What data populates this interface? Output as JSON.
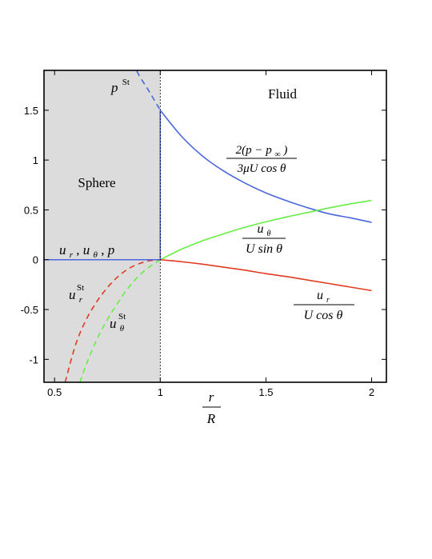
{
  "chart_data": {
    "type": "line",
    "xlabel": {
      "num": "r",
      "den": "R"
    },
    "xlim": [
      0.45,
      2.07
    ],
    "ylim": [
      -1.23,
      1.9
    ],
    "xticks": [
      {
        "value": 0.5,
        "label": "0.5"
      },
      {
        "value": 1,
        "label": "1"
      },
      {
        "value": 1.5,
        "label": "1.5"
      },
      {
        "value": 2,
        "label": "2"
      }
    ],
    "yticks": [
      {
        "value": -1,
        "label": "-1"
      },
      {
        "value": -0.5,
        "label": "-0.5"
      },
      {
        "value": 0,
        "label": "0"
      },
      {
        "value": 0.5,
        "label": "0.5"
      },
      {
        "value": 1,
        "label": "1"
      },
      {
        "value": 1.5,
        "label": "1.5"
      }
    ],
    "grid": false,
    "sphere_region": {
      "x_from": 0.45,
      "x_to": 1.0,
      "fill": "#dcdcdc"
    },
    "interface_x": 1.0,
    "series": [
      {
        "key": "pressure",
        "color": "#4a66dd",
        "style": "solid",
        "x": [
          1.0,
          1.1,
          1.2,
          1.3,
          1.4,
          1.5,
          1.6,
          1.7,
          1.8,
          1.9,
          2.0
        ],
        "y": [
          1.5,
          1.24,
          1.04,
          0.89,
          0.77,
          0.67,
          0.59,
          0.52,
          0.46,
          0.42,
          0.375
        ]
      },
      {
        "key": "pressure_stokes",
        "color": "#4a66dd",
        "style": "dashed",
        "x": [
          0.87,
          0.9,
          0.95,
          1.0
        ],
        "y": [
          1.98,
          1.85,
          1.68,
          1.5
        ]
      },
      {
        "key": "u_theta",
        "color": "#66ee44",
        "style": "solid",
        "x": [
          1.0,
          1.1,
          1.2,
          1.3,
          1.4,
          1.5,
          1.6,
          1.7,
          1.8,
          1.9,
          2.0
        ],
        "y": [
          0.0,
          0.105,
          0.19,
          0.26,
          0.325,
          0.38,
          0.43,
          0.475,
          0.52,
          0.56,
          0.595
        ]
      },
      {
        "key": "u_theta_stokes",
        "color": "#66ee44",
        "style": "dashed",
        "x": [
          0.62,
          0.65,
          0.7,
          0.75,
          0.8,
          0.85,
          0.9,
          0.95,
          1.0
        ],
        "y": [
          -1.23,
          -1.05,
          -0.8,
          -0.6,
          -0.43,
          -0.28,
          -0.16,
          -0.07,
          0.0
        ]
      },
      {
        "key": "u_r",
        "color": "#e03a22",
        "style": "solid",
        "x": [
          1.0,
          1.1,
          1.2,
          1.3,
          1.4,
          1.5,
          1.6,
          1.7,
          1.8,
          1.9,
          2.0
        ],
        "y": [
          0.0,
          -0.02,
          -0.045,
          -0.075,
          -0.105,
          -0.14,
          -0.17,
          -0.205,
          -0.24,
          -0.275,
          -0.31
        ]
      },
      {
        "key": "u_r_stokes",
        "color": "#e03a22",
        "style": "dashed",
        "x": [
          0.55,
          0.6,
          0.65,
          0.7,
          0.75,
          0.8,
          0.85,
          0.9,
          0.95,
          1.0
        ],
        "y": [
          -1.23,
          -0.85,
          -0.6,
          -0.42,
          -0.28,
          -0.17,
          -0.09,
          -0.04,
          -0.01,
          0.0
        ]
      },
      {
        "key": "zero_inside",
        "color": "#4a66dd",
        "style": "solid",
        "x": [
          0.45,
          1.0
        ],
        "y": [
          0.0,
          0.0
        ]
      },
      {
        "key": "pressure_jump",
        "color": "#4a66dd",
        "style": "solid",
        "x": [
          1.0,
          1.0
        ],
        "y": [
          0.0,
          1.5
        ]
      }
    ],
    "annotations": {
      "fluid": "Fluid",
      "sphere": "Sphere",
      "p_st": {
        "base": "p",
        "sup": "St"
      },
      "ur_st": {
        "base": "u",
        "sub": "r",
        "sup": "St"
      },
      "utheta_st": {
        "base": "u",
        "sub": "θ",
        "sup": "St"
      },
      "inside_vars": {
        "u": "u",
        "r": "r",
        "theta": "θ",
        "p": "p",
        "comma": ", "
      },
      "pressure_frac": {
        "num": "2(p − p",
        "num_sub": "∞",
        "num_close": ")",
        "den": "3μU cos θ"
      },
      "utheta_frac": {
        "num": "u",
        "num_sub": "θ",
        "den": "U sin θ"
      },
      "ur_frac": {
        "num": "u",
        "num_sub": "r",
        "den": "U cos θ"
      }
    }
  }
}
